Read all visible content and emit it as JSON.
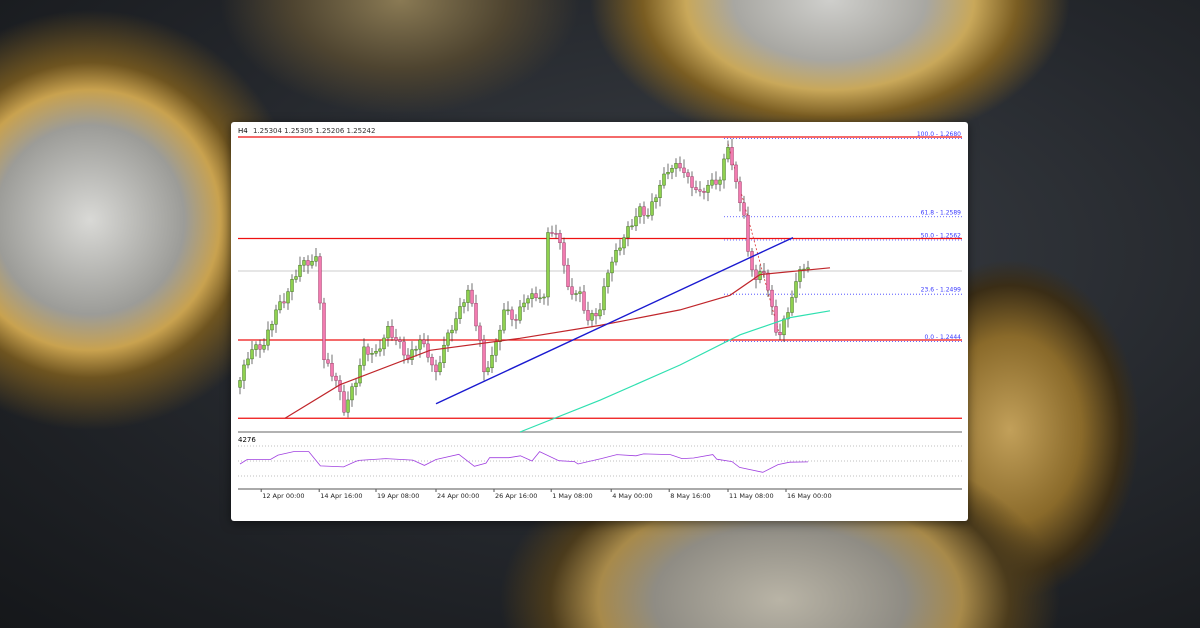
{
  "header": {
    "timeframe": "H4",
    "ohlc": "1.25304 1.25305 1.25206 1.25242"
  },
  "colors": {
    "bull": "#8fd14f",
    "bear": "#f27bb0",
    "ma_red": "#c0262b",
    "ma_green": "#2fe0b0",
    "trend": "#1a1ad0",
    "level": "#ee1111",
    "fib": "#3a3aff",
    "osc": "#a040e0"
  },
  "chart_data": {
    "type": "candlestick",
    "ylim": [
      1.233,
      1.2695
    ],
    "bars": 143,
    "close_path": [
      [
        0,
        1.2397
      ],
      [
        2.5,
        1.2432
      ],
      [
        6,
        1.2438
      ],
      [
        9,
        1.2479
      ],
      [
        11,
        1.249
      ],
      [
        15,
        1.2531
      ],
      [
        19,
        1.2537
      ],
      [
        20,
        1.249
      ],
      [
        21,
        1.2421
      ],
      [
        24,
        1.2397
      ],
      [
        26,
        1.2363
      ],
      [
        29,
        1.2397
      ],
      [
        31,
        1.2432
      ],
      [
        34,
        1.2427
      ],
      [
        37,
        1.2456
      ],
      [
        40,
        1.2438
      ],
      [
        42,
        1.2421
      ],
      [
        45,
        1.2444
      ],
      [
        47,
        1.2427
      ],
      [
        49,
        1.2403
      ],
      [
        51,
        1.2438
      ],
      [
        55,
        1.2479
      ],
      [
        57,
        1.2502
      ],
      [
        60,
        1.2444
      ],
      [
        61,
        1.2403
      ],
      [
        64,
        1.2438
      ],
      [
        66,
        1.2479
      ],
      [
        69,
        1.2467
      ],
      [
        71,
        1.249
      ],
      [
        74,
        1.2496
      ],
      [
        76,
        1.249
      ],
      [
        77,
        1.2572
      ],
      [
        80,
        1.256
      ],
      [
        82,
        1.2502
      ],
      [
        85,
        1.2496
      ],
      [
        87,
        1.2467
      ],
      [
        90,
        1.2479
      ],
      [
        92,
        1.2525
      ],
      [
        95,
        1.2554
      ],
      [
        97,
        1.2572
      ],
      [
        100,
        1.2595
      ],
      [
        102,
        1.2589
      ],
      [
        105,
        1.2624
      ],
      [
        107,
        1.2642
      ],
      [
        110,
        1.2647
      ],
      [
        112,
        1.263
      ],
      [
        115,
        1.2613
      ],
      [
        117,
        1.2624
      ],
      [
        120,
        1.263
      ],
      [
        122,
        1.2671
      ],
      [
        124,
        1.2624
      ],
      [
        126,
        1.2589
      ],
      [
        127,
        1.2543
      ],
      [
        129,
        1.2514
      ],
      [
        131,
        1.2525
      ],
      [
        134,
        1.2456
      ],
      [
        135,
        1.245
      ],
      [
        137,
        1.2479
      ],
      [
        139,
        1.2508
      ],
      [
        140,
        1.2529
      ],
      [
        142,
        1.2524
      ]
    ],
    "ma_red": [
      [
        11.25,
        1.2353
      ],
      [
        25,
        1.2392
      ],
      [
        47.5,
        1.2432
      ],
      [
        70,
        1.2446
      ],
      [
        90,
        1.2461
      ],
      [
        110,
        1.2479
      ],
      [
        122.5,
        1.2496
      ],
      [
        130,
        1.252
      ],
      [
        147.5,
        1.2528
      ]
    ],
    "ma_green": [
      [
        70,
        1.2337
      ],
      [
        90,
        1.2374
      ],
      [
        110,
        1.2415
      ],
      [
        125,
        1.245
      ],
      [
        137.5,
        1.247
      ],
      [
        147.5,
        1.2478
      ]
    ],
    "trendline": [
      [
        49,
        1.237
      ],
      [
        138.25,
        1.2563
      ]
    ],
    "horizontal_levels": [
      1.268,
      1.2562,
      1.2444,
      1.2353
    ],
    "current_price": 1.25242,
    "fib": {
      "start_bar": 121,
      "swing": [
        [
          122,
          1.2672
        ],
        [
          135,
          1.2448
        ]
      ],
      "levels": [
        {
          "label": "100.0 - 1.2680",
          "price": 1.268
        },
        {
          "label": "61.8 - 1.2589",
          "price": 1.2589
        },
        {
          "label": "50.0 - 1.2562",
          "price": 1.2562
        },
        {
          "label": "23.6 - 1.2499",
          "price": 1.2499
        },
        {
          "label": "0.0 - 1.2444",
          "price": 1.2444
        }
      ]
    },
    "oscillator": {
      "label": "4276",
      "levels": [
        -1,
        0,
        1
      ],
      "values": [
        [
          0,
          -0.2
        ],
        [
          1.8,
          0.1
        ],
        [
          7.6,
          0.1
        ],
        [
          9.5,
          0.39
        ],
        [
          13.4,
          0.63
        ],
        [
          17.2,
          0.63
        ],
        [
          20.1,
          -0.33
        ],
        [
          25.9,
          -0.39
        ],
        [
          28.8,
          -0.04
        ],
        [
          29.7,
          0.04
        ],
        [
          36.5,
          0.16
        ],
        [
          43.2,
          0.06
        ],
        [
          46.1,
          -0.29
        ],
        [
          49,
          0.1
        ],
        [
          54.7,
          0.45
        ],
        [
          58.6,
          -0.35
        ],
        [
          61.5,
          -0.14
        ],
        [
          62.4,
          0.22
        ],
        [
          67.2,
          0.22
        ],
        [
          70.1,
          0.35
        ],
        [
          73,
          0
        ],
        [
          74.9,
          0.63
        ],
        [
          79.7,
          0.02
        ],
        [
          83.6,
          -0.04
        ],
        [
          84.5,
          -0.2
        ],
        [
          90.3,
          0.16
        ],
        [
          94.2,
          0.43
        ],
        [
          99,
          0.35
        ],
        [
          100.9,
          0.47
        ],
        [
          107.6,
          0.43
        ],
        [
          110.5,
          0.16
        ],
        [
          113.4,
          0.2
        ],
        [
          118.2,
          0.43
        ],
        [
          119.2,
          0.12
        ],
        [
          123,
          -0.04
        ],
        [
          124.9,
          -0.43
        ],
        [
          130.7,
          -0.75
        ],
        [
          134.5,
          -0.24
        ],
        [
          137.4,
          -0.08
        ],
        [
          142,
          -0.06
        ]
      ]
    },
    "x_ticks": [
      {
        "bar": 5.3,
        "label": "12 Apr 00:00"
      },
      {
        "bar": 19.8,
        "label": "14 Apr 16:00"
      },
      {
        "bar": 34,
        "label": "19 Apr 08:00"
      },
      {
        "bar": 49,
        "label": "24 Apr 00:00"
      },
      {
        "bar": 63.5,
        "label": "26 Apr 16:00"
      },
      {
        "bar": 77.8,
        "label": "1 May 08:00"
      },
      {
        "bar": 92.8,
        "label": "4 May 00:00"
      },
      {
        "bar": 107.3,
        "label": "8 May 16:00"
      },
      {
        "bar": 122,
        "label": "11 May 08:00"
      },
      {
        "bar": 136.5,
        "label": "16 May 00:00"
      }
    ]
  }
}
